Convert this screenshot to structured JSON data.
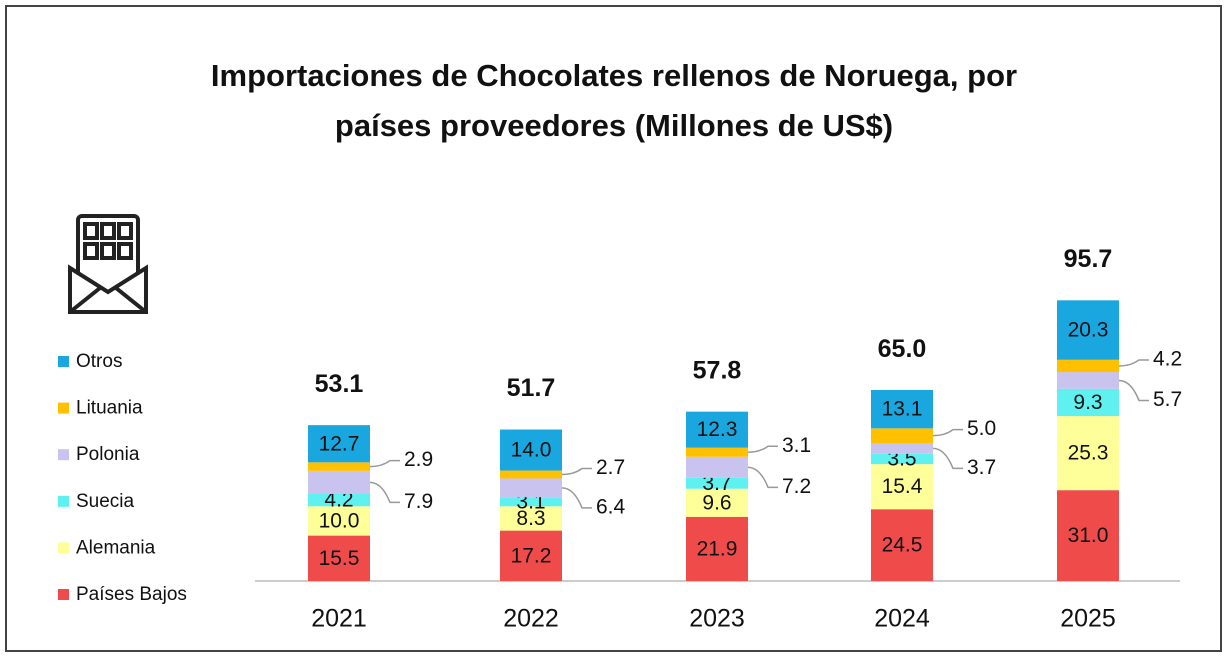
{
  "chart_data": {
    "type": "stacked_bar",
    "title": "Importaciones de Chocolates rellenos de Noruega, por",
    "subtitle": "países proveedores (Millones de US$)",
    "categories": [
      "2021",
      "2022",
      "2023",
      "2024",
      "2025"
    ],
    "series": [
      {
        "name": "Países Bajos",
        "color": "#f04b4b",
        "values": [
          15.5,
          17.2,
          21.9,
          24.5,
          31.0
        ],
        "value_labels": [
          "15.5",
          "17.2",
          "21.9",
          "24.5",
          "31.0"
        ]
      },
      {
        "name": "Alemania",
        "color": "#ffff99",
        "values": [
          10.0,
          8.3,
          9.6,
          15.4,
          25.3
        ],
        "value_labels": [
          "10.0",
          "8.3",
          "9.6",
          "15.4",
          "25.3"
        ]
      },
      {
        "name": "Suecia",
        "color": "#5ff0f0",
        "values": [
          4.2,
          3.1,
          3.7,
          3.5,
          9.3
        ],
        "value_labels": [
          "4.2",
          "3.1",
          "3.7",
          "3.5",
          "9.3"
        ]
      },
      {
        "name": "Polonia",
        "color": "#c9c3f0",
        "values": [
          7.9,
          6.4,
          7.2,
          3.7,
          5.7
        ],
        "value_labels": [
          "7.9",
          "6.4",
          "7.2",
          "3.7",
          "5.7"
        ]
      },
      {
        "name": "Lituania",
        "color": "#ffc000",
        "values": [
          2.9,
          2.7,
          3.1,
          5.0,
          4.2
        ],
        "value_labels": [
          "2.9",
          "2.7",
          "3.1",
          "5.0",
          "4.2"
        ]
      },
      {
        "name": "Otros",
        "color": "#1aa7e0",
        "values": [
          12.7,
          14.0,
          12.3,
          13.1,
          20.3
        ],
        "value_labels": [
          "12.7",
          "14.0",
          "12.3",
          "13.1",
          "20.3"
        ]
      }
    ],
    "totals": [
      53.1,
      51.7,
      57.8,
      65.0,
      95.7
    ],
    "total_labels": [
      "53.1",
      "51.7",
      "57.8",
      "65.0",
      "95.7"
    ]
  }
}
